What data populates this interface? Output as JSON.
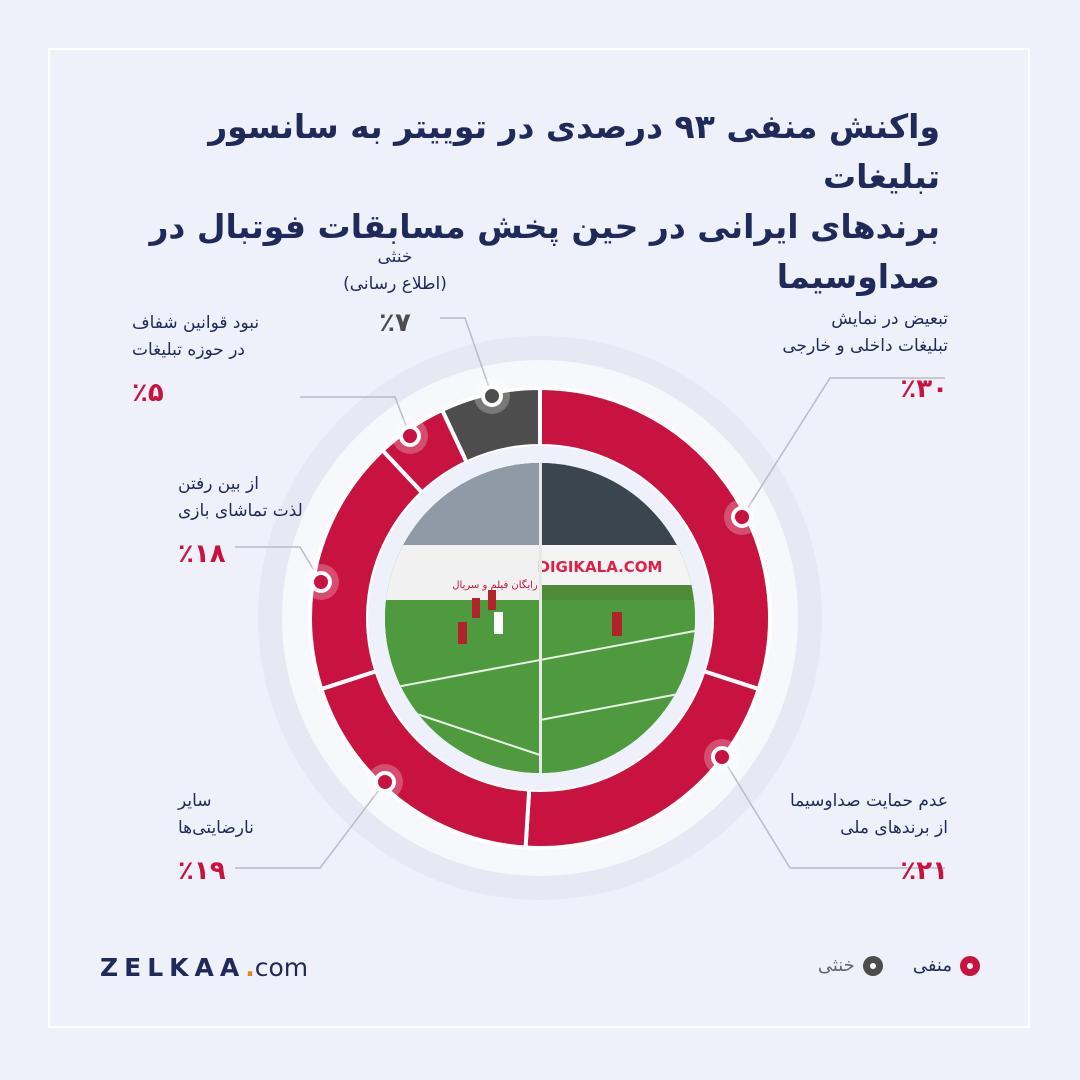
{
  "title": {
    "line1": "واکنش منفی ۹۳ درصدی در توییتر به سانسور تبلیغات",
    "line2": "برندهای ایرانی در حین پخش مسابقات فوتبال در صداوسیما"
  },
  "chart_data": {
    "type": "pie",
    "slices": [
      {
        "label": "تبعیض در نمایش تبلیغات داخلی و خارجی",
        "value": 30,
        "value_text": "٪۳۰",
        "group": "negative"
      },
      {
        "label": "عدم حمایت صداوسیما از برندهای ملی",
        "value": 21,
        "value_text": "٪۲۱",
        "group": "negative"
      },
      {
        "label": "سایر نارضایتی‌ها",
        "value": 19,
        "value_text": "٪۱۹",
        "group": "negative"
      },
      {
        "label": "از بین رفتن لذت تماشای بازی",
        "value": 18,
        "value_text": "٪۱۸",
        "group": "negative"
      },
      {
        "label": "نبود قوانین شفاف در حوزه تبلیغات",
        "value": 5,
        "value_text": "٪۵",
        "group": "negative"
      },
      {
        "label": "خنثی (اطلاع رسانی)",
        "value": 7,
        "value_text": "٪۷",
        "group": "neutral"
      }
    ],
    "colors": {
      "negative": "#c8123f",
      "neutral": "#4d4d4d"
    }
  },
  "labels": {
    "s30": {
      "line1": "تبعیض در نمایش",
      "line2": "تبلیغات داخلی و خارجی",
      "pct": "٪۳۰"
    },
    "s21": {
      "line1": "عدم حمایت صداوسیما",
      "line2": "از برندهای ملی",
      "pct": "٪۲۱"
    },
    "s19": {
      "line1": "سایر",
      "line2": "نارضایتی‌ها",
      "pct": "٪۱۹"
    },
    "s18": {
      "line1": "از بین رفتن",
      "line2": "لذت تماشای بازی",
      "pct": "٪۱۸"
    },
    "s5": {
      "line1": "نبود قوانین شفاف",
      "line2": "در حوزه تبلیغات",
      "pct": "٪۵"
    },
    "s7": {
      "line1": "خنثی",
      "line2": "(اطلاع رسانی)",
      "pct": "٪۷"
    }
  },
  "center_image": {
    "ad_text_left": "DIGIKALA.COM",
    "ad_text_right": "رایگان فیلم و سریال"
  },
  "legend": {
    "negative": "منفی",
    "neutral": "خنثی"
  },
  "logo": {
    "brand": "ZELKAA",
    "dot": ".",
    "domain": "com"
  }
}
